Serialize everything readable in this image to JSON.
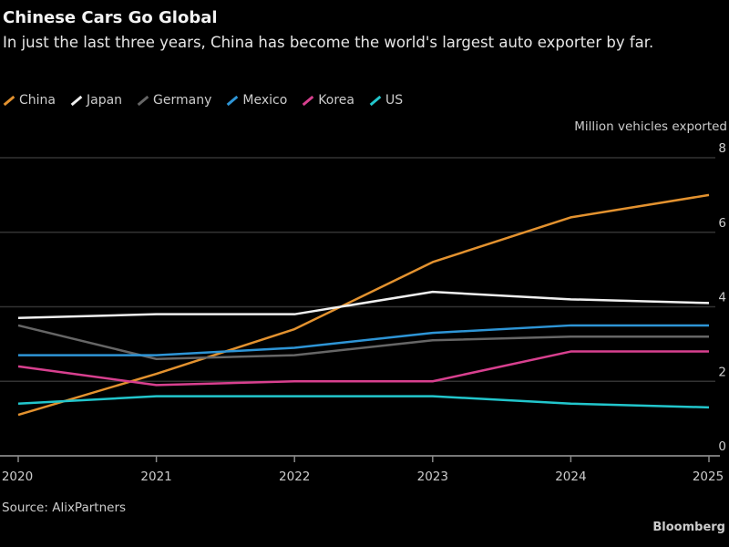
{
  "title": "Chinese Cars Go Global",
  "subtitle": "In just the last three years, China has become the world's largest auto exporter by far.",
  "source": "Source: AlixPartners",
  "logo": "Bloomberg",
  "chart_data": {
    "type": "line",
    "title": "Chinese Cars Go Global",
    "subtitle": "In just the last three years, China has become the world's largest auto exporter by far.",
    "ylabel": "Million vehicles exported",
    "xlabel": "",
    "x": [
      2020,
      2021,
      2022,
      2023,
      2024,
      2025
    ],
    "ylim": [
      0,
      8
    ],
    "yticks": [
      0,
      2,
      4,
      6,
      8
    ],
    "grid": true,
    "y_axis_side": "right",
    "legend_placement": "top-left",
    "series": [
      {
        "name": "China",
        "color": "#e3922f",
        "values": [
          1.1,
          2.2,
          3.4,
          5.2,
          6.4,
          7.0
        ]
      },
      {
        "name": "Japan",
        "color": "#f0f0f0",
        "values": [
          3.7,
          3.8,
          3.8,
          4.4,
          4.2,
          4.1
        ]
      },
      {
        "name": "Germany",
        "color": "#666666",
        "values": [
          3.5,
          2.6,
          2.7,
          3.1,
          3.2,
          3.2
        ]
      },
      {
        "name": "Mexico",
        "color": "#2e95d6",
        "values": [
          2.7,
          2.7,
          2.9,
          3.3,
          3.5,
          3.5
        ]
      },
      {
        "name": "Korea",
        "color": "#d8408f",
        "values": [
          2.4,
          1.9,
          2.0,
          2.0,
          2.8,
          2.8
        ]
      },
      {
        "name": "US",
        "color": "#22c6cc",
        "values": [
          1.4,
          1.6,
          1.6,
          1.6,
          1.4,
          1.3
        ]
      }
    ]
  }
}
